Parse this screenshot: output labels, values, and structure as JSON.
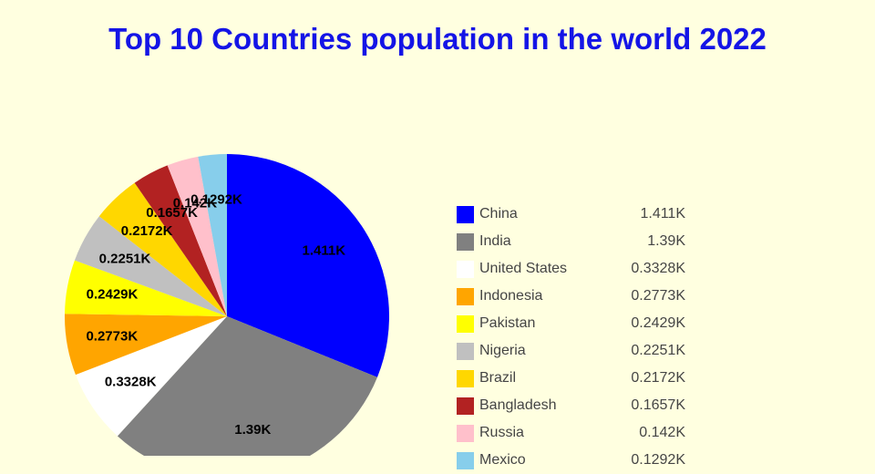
{
  "title": {
    "text": "Top 10 Countries population in the world 2022",
    "color": "#1414E6"
  },
  "background_color": "#FFFFE0",
  "chart_data": {
    "type": "pie",
    "title": "Top 10 Countries population in the world 2022",
    "categories": [
      "China",
      "India",
      "United States",
      "Indonesia",
      "Pakistan",
      "Nigeria",
      "Brazil",
      "Bangladesh",
      "Russia",
      "Mexico"
    ],
    "values": [
      1.411,
      1.39,
      0.3328,
      0.2773,
      0.2429,
      0.2251,
      0.2172,
      0.1657,
      0.142,
      0.1292
    ],
    "value_labels": [
      "1.411K",
      "1.39K",
      "0.3328K",
      "0.2773K",
      "0.2429K",
      "0.2251K",
      "0.2172K",
      "0.1657K",
      "0.142K",
      "0.1292K"
    ],
    "colors": [
      "#0000FF",
      "#808080",
      "#FFFFFF",
      "#FFA500",
      "#FFFF00",
      "#C0C0C0",
      "#FFD700",
      "#B22222",
      "#FFC0CB",
      "#87CEEB"
    ],
    "unit": "K",
    "start_angle_deg": 0,
    "direction": "clockwise",
    "legend_position": "right",
    "label_position": "inside"
  },
  "legend": {
    "rows": [
      {
        "label": "China",
        "value": "1.411K",
        "color": "#0000FF"
      },
      {
        "label": "India",
        "value": "1.39K",
        "color": "#808080"
      },
      {
        "label": "United States",
        "value": "0.3328K",
        "color": "#FFFFFF"
      },
      {
        "label": "Indonesia",
        "value": "0.2773K",
        "color": "#FFA500"
      },
      {
        "label": "Pakistan",
        "value": "0.2429K",
        "color": "#FFFF00"
      },
      {
        "label": "Nigeria",
        "value": "0.2251K",
        "color": "#C0C0C0"
      },
      {
        "label": "Brazil",
        "value": "0.2172K",
        "color": "#FFD700"
      },
      {
        "label": "Bangladesh",
        "value": "0.1657K",
        "color": "#B22222"
      },
      {
        "label": "Russia",
        "value": "0.142K",
        "color": "#FFC0CB"
      },
      {
        "label": "Mexico",
        "value": "0.1292K",
        "color": "#87CEEB"
      }
    ]
  }
}
